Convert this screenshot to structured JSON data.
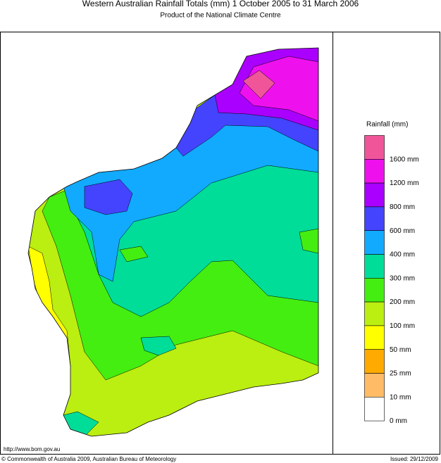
{
  "header": {
    "title": "Western Australian Rainfall Totals (mm) 1 October 2005 to 31 March 2006",
    "subtitle": "Product of the National Climate Centre"
  },
  "legend": {
    "title": "Rainfall (mm)",
    "items": [
      {
        "label": "1600 mm",
        "color": "#f0559a"
      },
      {
        "label": "1200 mm",
        "color": "#ee11ee"
      },
      {
        "label": "800 mm",
        "color": "#aa00ff"
      },
      {
        "label": "600 mm",
        "color": "#4444ff"
      },
      {
        "label": "400 mm",
        "color": "#11aaff"
      },
      {
        "label": "300 mm",
        "color": "#00dd99"
      },
      {
        "label": "200 mm",
        "color": "#44ee11"
      },
      {
        "label": "100 mm",
        "color": "#bbee11"
      },
      {
        "label": "50 mm",
        "color": "#ffff00"
      },
      {
        "label": "25 mm",
        "color": "#ffaa00"
      },
      {
        "label": "10 mm",
        "color": "#ffbb66"
      },
      {
        "label": "0 mm",
        "color": "#ffffff"
      }
    ]
  },
  "footer": {
    "url": "http://www.bom.gov.au",
    "copyright": "© Commonwealth of Australia 2009, Australian Bureau of Meteorology",
    "issued": "Issued: 29/12/2009"
  }
}
